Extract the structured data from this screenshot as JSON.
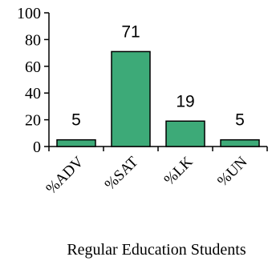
{
  "chart_data": {
    "type": "bar",
    "categories": [
      "%ADV",
      "%SAT",
      "%LK",
      "%UN"
    ],
    "values": [
      5,
      71,
      19,
      5
    ],
    "data_labels": [
      "5",
      "71",
      "19",
      "5"
    ],
    "title": "",
    "xlabel": "Regular Education Students",
    "ylabel": "",
    "ylim": [
      0,
      100
    ],
    "yticks": [
      0,
      20,
      40,
      60,
      80,
      100
    ],
    "grid": false,
    "bar_color": "#3daa78",
    "bar_edge_color": "#000000"
  }
}
